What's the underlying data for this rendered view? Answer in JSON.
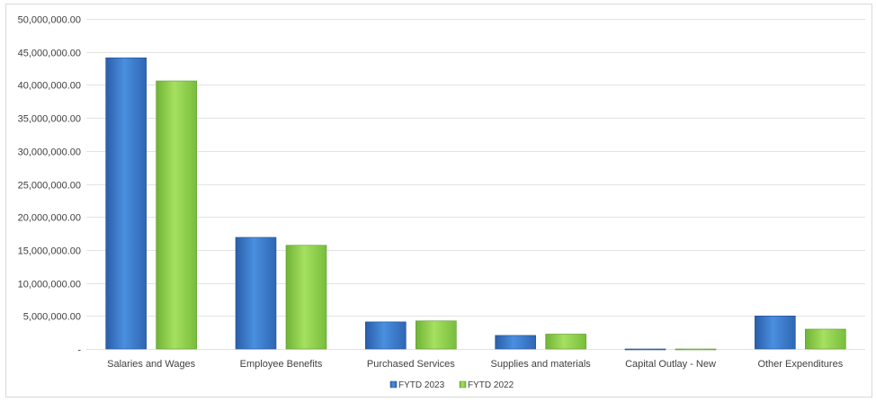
{
  "chart_data": {
    "type": "bar",
    "categories": [
      "Salaries and Wages",
      "Employee Benefits",
      "Purchased Services",
      "Supplies and materials",
      "Capital Outlay - New",
      "Other Expenditures"
    ],
    "series": [
      {
        "name": "FYTD 2023",
        "color": "#3b78c8",
        "values": [
          44100000,
          16900000,
          4100000,
          2050000,
          -100000,
          5000000
        ]
      },
      {
        "name": "FYTD 2022",
        "color": "#8fd14f",
        "values": [
          40600000,
          15700000,
          4250000,
          2250000,
          -100000,
          3000000
        ]
      }
    ],
    "yticks": [
      "-",
      "5,000,000.00",
      "10,000,000.00",
      "15,000,000.00",
      "20,000,000.00",
      "25,000,000.00",
      "30,000,000.00",
      "35,000,000.00",
      "40,000,000.00",
      "45,000,000.00",
      "50,000,000.00"
    ],
    "ylim": [
      0,
      50000000
    ],
    "grid": true,
    "legend_position": "bottom"
  }
}
